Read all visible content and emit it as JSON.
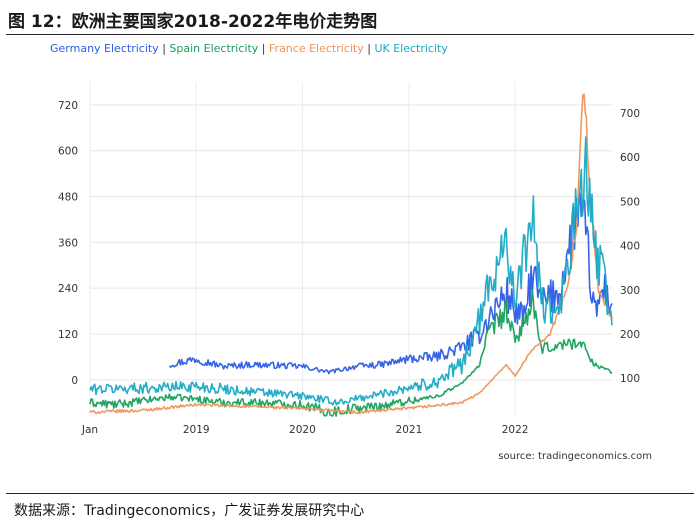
{
  "figure_title": "图 12：欧洲主要国家2018-2022年电价走势图",
  "footer_note": "数据来源：Tradingeconomics，广发证券发展研究中心",
  "source_label": "source: tradingeconomics.com",
  "legend": {
    "sep": "|",
    "items": [
      {
        "label": "Germany Electricity",
        "color": "#2b5ce6"
      },
      {
        "label": "Spain Electricity",
        "color": "#16a05a"
      },
      {
        "label": "France Electricity",
        "color": "#f0935a"
      },
      {
        "label": "UK Electricity",
        "color": "#19a8c4"
      }
    ]
  },
  "chart_data": {
    "type": "line",
    "title": "",
    "xlabel": "",
    "x_ticks": [
      "Jan",
      "2019",
      "2020",
      "2021",
      "2022"
    ],
    "x_range": [
      "2018-01-01",
      "2022-11-30"
    ],
    "y_left": {
      "ticks": [
        0,
        120,
        240,
        360,
        480,
        600,
        720
      ],
      "range": [
        -100,
        780
      ]
    },
    "y_right": {
      "ticks": [
        100,
        200,
        300,
        400,
        500,
        600,
        700
      ],
      "range": [
        10,
        770
      ]
    },
    "grid": true,
    "legend_position": "top-left",
    "series": [
      {
        "name": "Germany Electricity",
        "color": "#2b5ce6",
        "axis": "left",
        "points": [
          [
            "2018-10-01",
            40
          ],
          [
            "2019-01-01",
            55
          ],
          [
            "2019-04-01",
            35
          ],
          [
            "2019-07-01",
            40
          ],
          [
            "2019-10-01",
            38
          ],
          [
            "2020-01-01",
            35
          ],
          [
            "2020-04-01",
            20
          ],
          [
            "2020-07-01",
            35
          ],
          [
            "2020-10-01",
            40
          ],
          [
            "2021-01-01",
            55
          ],
          [
            "2021-04-01",
            60
          ],
          [
            "2021-07-01",
            85
          ],
          [
            "2021-09-01",
            120
          ],
          [
            "2021-10-01",
            160
          ],
          [
            "2021-12-01",
            230
          ],
          [
            "2022-01-01",
            180
          ],
          [
            "2022-02-01",
            160
          ],
          [
            "2022-03-01",
            280
          ],
          [
            "2022-04-01",
            200
          ],
          [
            "2022-06-01",
            230
          ],
          [
            "2022-07-01",
            320
          ],
          [
            "2022-08-01",
            440
          ],
          [
            "2022-09-01",
            380
          ],
          [
            "2022-10-01",
            170
          ],
          [
            "2022-11-01",
            240
          ],
          [
            "2022-11-30",
            200
          ]
        ]
      },
      {
        "name": "Spain Electricity",
        "color": "#16a05a",
        "axis": "left",
        "points": [
          [
            "2018-01-01",
            -60
          ],
          [
            "2018-04-01",
            -65
          ],
          [
            "2018-07-01",
            -55
          ],
          [
            "2018-10-01",
            -45
          ],
          [
            "2019-01-01",
            -50
          ],
          [
            "2019-04-01",
            -60
          ],
          [
            "2019-07-01",
            -58
          ],
          [
            "2019-10-01",
            -62
          ],
          [
            "2020-01-01",
            -65
          ],
          [
            "2020-04-01",
            -85
          ],
          [
            "2020-07-01",
            -75
          ],
          [
            "2020-10-01",
            -68
          ],
          [
            "2021-01-01",
            -55
          ],
          [
            "2021-04-01",
            -45
          ],
          [
            "2021-07-01",
            -10
          ],
          [
            "2021-09-01",
            40
          ],
          [
            "2021-10-01",
            120
          ],
          [
            "2021-12-01",
            180
          ],
          [
            "2022-01-01",
            100
          ],
          [
            "2022-03-01",
            200
          ],
          [
            "2022-04-01",
            80
          ],
          [
            "2022-06-01",
            90
          ],
          [
            "2022-08-01",
            100
          ],
          [
            "2022-09-01",
            80
          ],
          [
            "2022-10-01",
            40
          ],
          [
            "2022-11-01",
            30
          ],
          [
            "2022-11-30",
            20
          ]
        ]
      },
      {
        "name": "France Electricity",
        "color": "#f0935a",
        "axis": "left",
        "points": [
          [
            "2018-01-01",
            -85
          ],
          [
            "2018-07-01",
            -80
          ],
          [
            "2019-01-01",
            -65
          ],
          [
            "2019-07-01",
            -70
          ],
          [
            "2020-01-01",
            -75
          ],
          [
            "2020-07-01",
            -85
          ],
          [
            "2021-01-01",
            -75
          ],
          [
            "2021-07-01",
            -60
          ],
          [
            "2021-09-01",
            -35
          ],
          [
            "2021-10-01",
            -10
          ],
          [
            "2021-12-01",
            40
          ],
          [
            "2022-01-01",
            10
          ],
          [
            "2022-03-01",
            80
          ],
          [
            "2022-05-01",
            120
          ],
          [
            "2022-07-01",
            240
          ],
          [
            "2022-08-01",
            420
          ],
          [
            "2022-08-26",
            780
          ],
          [
            "2022-09-15",
            500
          ],
          [
            "2022-10-15",
            230
          ],
          [
            "2022-11-30",
            160
          ]
        ]
      },
      {
        "name": "UK Electricity",
        "color": "#19a8c4",
        "axis": "right",
        "points": [
          [
            "2018-01-01",
            75
          ],
          [
            "2018-07-01",
            78
          ],
          [
            "2019-01-01",
            82
          ],
          [
            "2019-07-01",
            70
          ],
          [
            "2020-01-01",
            60
          ],
          [
            "2020-05-01",
            45
          ],
          [
            "2020-10-01",
            65
          ],
          [
            "2021-01-01",
            80
          ],
          [
            "2021-04-01",
            90
          ],
          [
            "2021-07-01",
            130
          ],
          [
            "2021-09-01",
            230
          ],
          [
            "2021-10-01",
            300
          ],
          [
            "2021-12-01",
            430
          ],
          [
            "2022-01-01",
            260
          ],
          [
            "2022-03-01",
            480
          ],
          [
            "2022-04-01",
            270
          ],
          [
            "2022-06-01",
            240
          ],
          [
            "2022-08-01",
            480
          ],
          [
            "2022-09-01",
            560
          ],
          [
            "2022-10-01",
            400
          ],
          [
            "2022-11-01",
            330
          ],
          [
            "2022-11-30",
            220
          ]
        ]
      }
    ]
  }
}
